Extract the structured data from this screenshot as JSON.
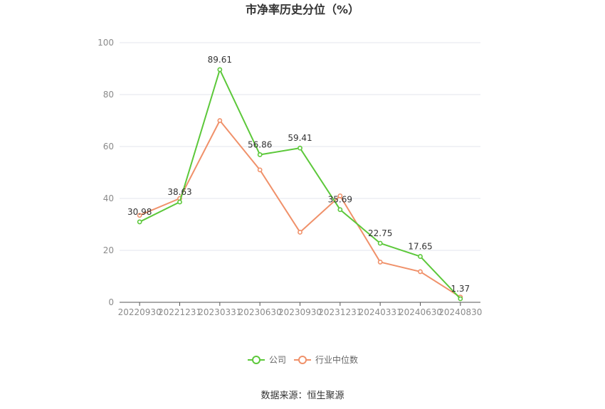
{
  "chart_data": {
    "type": "line",
    "title": "市净率历史分位（%）",
    "categories": [
      "20220930",
      "20221231",
      "20230331",
      "20230630",
      "20230930",
      "20231231",
      "20240331",
      "20240630",
      "20240830"
    ],
    "ylim": [
      0,
      100
    ],
    "yticks": [
      0,
      20,
      40,
      60,
      80,
      100
    ],
    "grid": true,
    "legend_position": "bottom",
    "series": [
      {
        "name": "公司",
        "color": "#5cc83a",
        "values": [
          30.98,
          38.63,
          89.61,
          56.86,
          59.41,
          35.69,
          22.75,
          17.65,
          1.37
        ],
        "labels": [
          "30.98",
          "38.63",
          "89.61",
          "56.86",
          "59.41",
          "35.69",
          "22.75",
          "17.65",
          "1.37"
        ]
      },
      {
        "name": "行业中位数",
        "color": "#f0916a",
        "values": [
          33.5,
          40.0,
          70.0,
          51.0,
          27.0,
          41.0,
          15.5,
          11.8,
          2.0
        ]
      }
    ],
    "source": "数据来源：恒生聚源"
  }
}
